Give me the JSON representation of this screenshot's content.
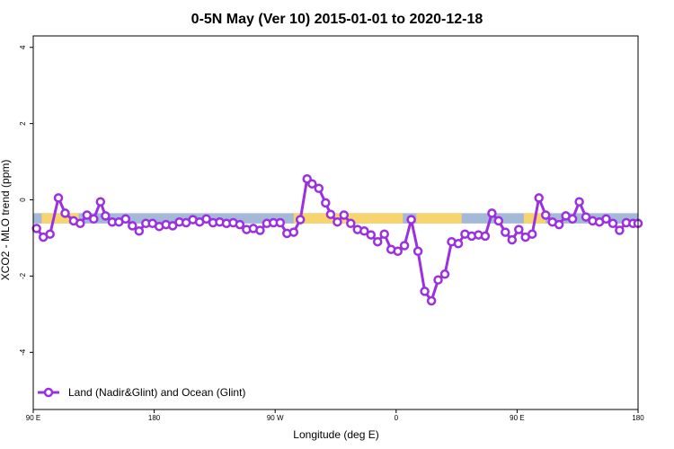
{
  "chart_data": {
    "type": "line",
    "title": "0-5N May (Ver 10)   2015-01-01 to 2020-12-18",
    "xlabel": "Longitude (deg E)",
    "ylabel": "XCO2 - MLO trend (ppm)",
    "xlim": [
      0,
      360
    ],
    "ylim": [
      -5.5,
      4.3
    ],
    "x_ticks": [
      {
        "value": 0,
        "label": "90 E"
      },
      {
        "value": 72,
        "label": "180"
      },
      {
        "value": 144,
        "label": "90 W"
      },
      {
        "value": 216,
        "label": "0"
      },
      {
        "value": 288,
        "label": "90 E"
      },
      {
        "value": 360,
        "label": "180"
      }
    ],
    "y_ticks": [
      {
        "value": 4,
        "label": "4"
      },
      {
        "value": 2,
        "label": "2"
      },
      {
        "value": 0,
        "label": "0"
      },
      {
        "value": -2,
        "label": "-2"
      },
      {
        "value": -4,
        "label": "-4"
      }
    ],
    "surface_band": {
      "y_top": -0.35,
      "y_bottom": -0.62,
      "ocean_color": "#a4b8d8",
      "land_color": "#f8d46e",
      "land_ranges": [
        [
          5,
          27
        ],
        [
          155,
          220
        ],
        [
          228,
          255
        ],
        [
          292,
          305
        ]
      ]
    },
    "grid": false,
    "legend_position": "bottom-left",
    "series": [
      {
        "name": "Land (Nadir&Glint) and Ocean (Glint)",
        "color": "#9b30e0",
        "x": [
          2,
          6,
          10,
          15,
          19,
          24,
          28,
          32,
          36,
          40,
          43,
          47,
          51,
          55,
          59,
          63,
          67,
          71,
          75,
          79,
          83,
          87,
          91,
          95,
          99,
          103,
          107,
          111,
          115,
          119,
          123,
          127,
          131,
          135,
          139,
          143,
          147,
          151,
          155,
          159,
          163,
          166,
          170,
          174,
          177,
          181,
          185,
          189,
          193,
          197,
          201,
          205,
          209,
          213,
          217,
          221,
          225,
          229,
          233,
          237,
          241,
          245,
          249,
          253,
          257,
          261,
          265,
          269,
          273,
          277,
          281,
          285,
          289,
          293,
          297,
          301,
          305,
          309,
          313,
          317,
          321,
          325,
          329,
          333,
          337,
          341,
          345,
          349,
          353,
          357,
          360
        ],
        "y": [
          -0.75,
          -0.98,
          -0.9,
          0.05,
          -0.35,
          -0.55,
          -0.62,
          -0.4,
          -0.5,
          -0.05,
          -0.42,
          -0.58,
          -0.58,
          -0.5,
          -0.68,
          -0.82,
          -0.62,
          -0.62,
          -0.7,
          -0.65,
          -0.68,
          -0.58,
          -0.6,
          -0.52,
          -0.58,
          -0.5,
          -0.6,
          -0.58,
          -0.62,
          -0.6,
          -0.65,
          -0.78,
          -0.75,
          -0.8,
          -0.62,
          -0.6,
          -0.6,
          -0.88,
          -0.85,
          -0.52,
          0.55,
          0.42,
          0.3,
          -0.08,
          -0.38,
          -0.58,
          -0.4,
          -0.62,
          -0.78,
          -0.82,
          -0.92,
          -1.1,
          -0.9,
          -1.3,
          -1.35,
          -1.2,
          -0.52,
          -1.35,
          -2.4,
          -2.65,
          -2.1,
          -1.95,
          -1.1,
          -1.15,
          -0.9,
          -0.95,
          -0.92,
          -0.95,
          -0.35,
          -0.55,
          -0.85,
          -1.05,
          -0.78,
          -0.98,
          -0.9,
          0.05,
          -0.4,
          -0.58,
          -0.65,
          -0.42,
          -0.5,
          -0.05,
          -0.45,
          -0.55,
          -0.58,
          -0.5,
          -0.62,
          -0.8,
          -0.6,
          -0.62,
          -0.62
        ]
      }
    ]
  }
}
